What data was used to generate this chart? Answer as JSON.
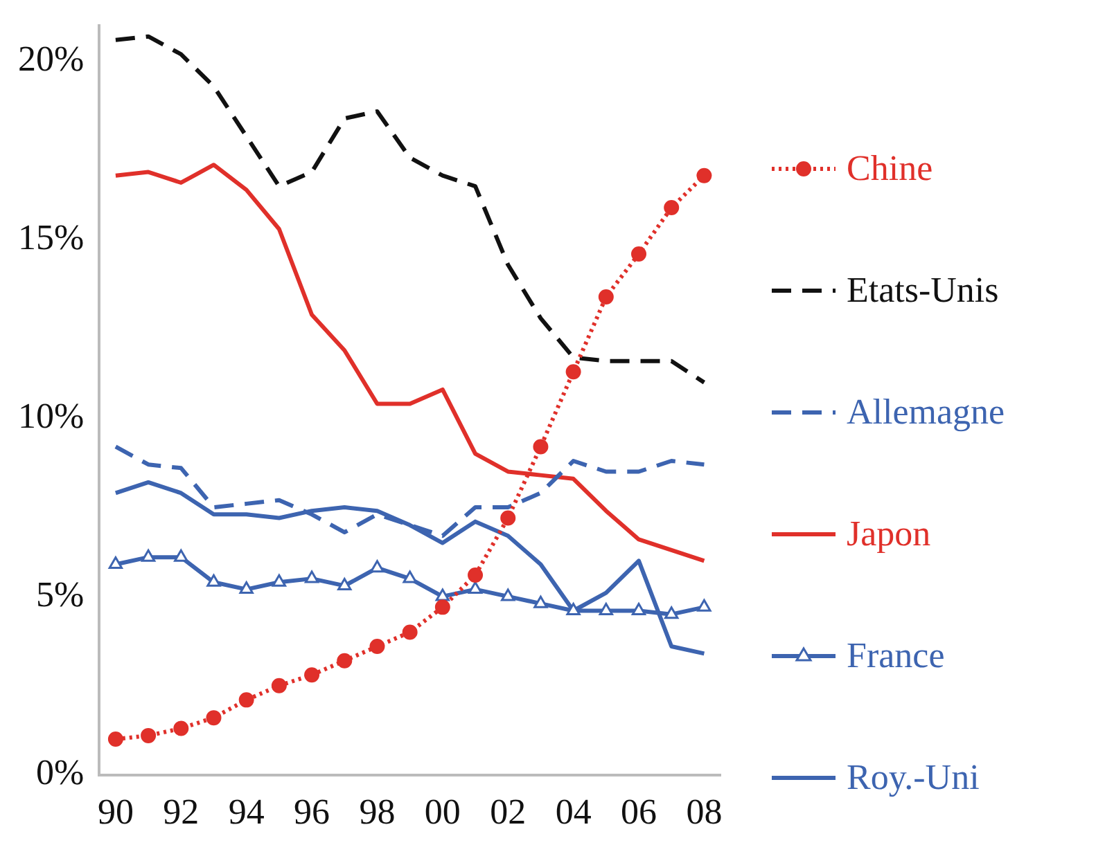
{
  "chart_data": {
    "type": "line",
    "categories": [
      "90",
      null,
      "92",
      null,
      "94",
      null,
      "96",
      null,
      "98",
      null,
      "00",
      null,
      "02",
      null,
      "04",
      null,
      "06",
      null,
      "08"
    ],
    "series": [
      {
        "name": "Chine",
        "color": "#e0302a",
        "marker": "circle",
        "line_style": "dotted",
        "values": [
          1.0,
          1.1,
          1.3,
          1.6,
          2.1,
          2.5,
          2.8,
          3.2,
          3.6,
          4.0,
          4.7,
          5.6,
          7.2,
          9.2,
          11.3,
          13.4,
          14.6,
          15.9,
          16.8
        ]
      },
      {
        "name": "Etats-Unis",
        "color": "#111111",
        "marker": "none",
        "line_style": "dashed",
        "values": [
          20.6,
          20.7,
          20.2,
          19.3,
          17.9,
          16.5,
          16.9,
          18.4,
          18.6,
          17.3,
          16.8,
          16.5,
          14.3,
          12.8,
          11.7,
          11.6,
          11.6,
          11.6,
          11.0
        ]
      },
      {
        "name": "Allemagne",
        "color": "#3d64b0",
        "marker": "none",
        "line_style": "dashed",
        "values": [
          9.2,
          8.7,
          8.6,
          7.5,
          7.6,
          7.7,
          7.3,
          6.8,
          7.3,
          7.0,
          6.7,
          7.5,
          7.5,
          7.9,
          8.8,
          8.5,
          8.5,
          8.8,
          8.7
        ]
      },
      {
        "name": "Japon",
        "color": "#e0302a",
        "marker": "none",
        "line_style": "solid",
        "values": [
          16.8,
          16.9,
          16.6,
          17.1,
          16.4,
          15.3,
          12.9,
          11.9,
          10.4,
          10.4,
          10.8,
          9.0,
          8.5,
          8.4,
          8.3,
          7.4,
          6.6,
          6.3,
          6.0
        ]
      },
      {
        "name": "France",
        "color": "#3d64b0",
        "marker": "triangle",
        "line_style": "solid",
        "values": [
          5.9,
          6.1,
          6.1,
          5.4,
          5.2,
          5.4,
          5.5,
          5.3,
          5.8,
          5.5,
          5.0,
          5.2,
          5.0,
          4.8,
          4.6,
          4.6,
          4.6,
          4.5,
          4.7
        ]
      },
      {
        "name": "Roy.-Uni",
        "color": "#3d64b0",
        "marker": "none",
        "line_style": "solid",
        "values": [
          7.9,
          8.2,
          7.9,
          7.3,
          7.3,
          7.2,
          7.4,
          7.5,
          7.4,
          7.0,
          6.5,
          7.1,
          6.7,
          5.9,
          4.6,
          5.1,
          6.0,
          3.6,
          3.4
        ]
      }
    ],
    "ylim": [
      0,
      21
    ],
    "yticks": [
      {
        "value": 0,
        "label": "0%"
      },
      {
        "value": 5,
        "label": "5%"
      },
      {
        "value": 10,
        "label": "10%"
      },
      {
        "value": 15,
        "label": "15%"
      },
      {
        "value": 20,
        "label": "20%"
      }
    ],
    "grid": false,
    "legend": "right"
  }
}
